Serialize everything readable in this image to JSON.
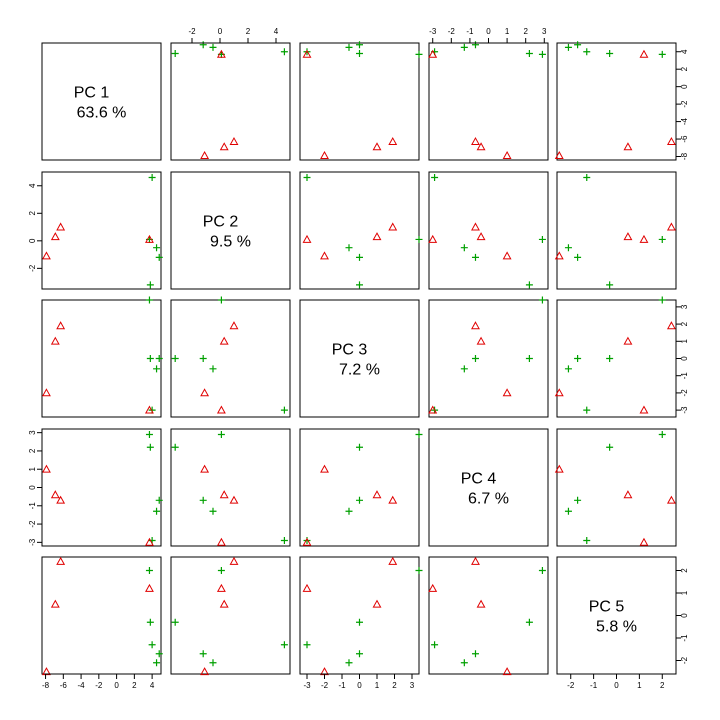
{
  "chart_data": {
    "type": "scatter",
    "kind": "pairs-plot",
    "n_panels": 5,
    "variables": [
      {
        "name": "PC 1",
        "variance": "63.6 %",
        "lim": [
          -8.4,
          5.0
        ],
        "ticks": [
          -8,
          -6,
          -4,
          -2,
          0,
          2,
          4
        ]
      },
      {
        "name": "PC 2",
        "variance": "9.5 %",
        "lim": [
          -3.5,
          5.0
        ],
        "ticks": [
          -2,
          0,
          2,
          4
        ]
      },
      {
        "name": "PC 3",
        "variance": "7.2 %",
        "lim": [
          -3.4,
          3.4
        ],
        "ticks": [
          -3,
          -2,
          -1,
          0,
          1,
          2,
          3
        ]
      },
      {
        "name": "PC 4",
        "variance": "6.7 %",
        "lim": [
          -3.2,
          3.2
        ],
        "ticks": [
          -3,
          -2,
          -1,
          0,
          1,
          2,
          3
        ]
      },
      {
        "name": "PC 5",
        "variance": "5.8 %",
        "lim": [
          -2.6,
          2.6
        ],
        "ticks": [
          -2,
          -1,
          0,
          1,
          2
        ]
      }
    ],
    "groups": [
      {
        "marker": "plus",
        "color": "#00a000",
        "points": [
          [
            4.0,
            4.6,
            -3.0,
            -2.9,
            -1.3
          ],
          [
            4.5,
            -0.5,
            -0.6,
            -1.3,
            -2.1
          ],
          [
            3.7,
            0.1,
            3.4,
            2.9,
            2.0
          ],
          [
            3.8,
            -3.2,
            0.0,
            2.2,
            -0.3
          ],
          [
            4.8,
            -1.2,
            0.0,
            -0.7,
            -1.7
          ]
        ]
      },
      {
        "marker": "triangle",
        "color": "#e00000",
        "points": [
          [
            -7.9,
            -1.1,
            -2.0,
            1.0,
            -2.5
          ],
          [
            -6.9,
            0.3,
            1.0,
            -0.4,
            0.5
          ],
          [
            -6.3,
            1.0,
            1.9,
            -0.7,
            2.4
          ],
          [
            3.7,
            0.1,
            -3.0,
            -3.0,
            1.2
          ]
        ]
      }
    ],
    "axes": {
      "bottom_ticks_on_columns": [
        0,
        2,
        4
      ],
      "top_ticks_on_columns": [
        1,
        3
      ],
      "left_ticks_on_rows": [
        1,
        3
      ],
      "right_ticks_on_rows": [
        0,
        2,
        4
      ]
    },
    "grid": false
  }
}
